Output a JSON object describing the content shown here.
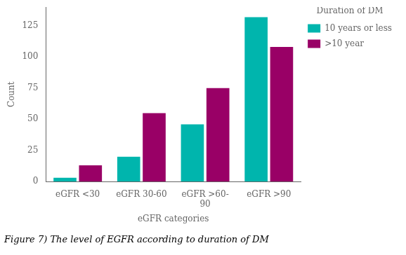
{
  "chart_data": {
    "type": "bar",
    "categories": [
      "eGFR <30",
      "eGFR 30-60",
      "eGFR >60-\n90",
      "eGFR >90"
    ],
    "series": [
      {
        "name": "10 years or less",
        "color": "#00B5AD",
        "values": [
          3,
          20,
          46,
          132
        ]
      },
      {
        "name": ">10 year",
        "color": "#990066",
        "values": [
          13,
          55,
          75,
          108
        ]
      }
    ],
    "legend_title": "Duration of DM",
    "legend": "right",
    "xlabel": "eGFR categories",
    "ylabel": "Count",
    "caption": "Figure 7) The level of EGFR according to duration of DM",
    "ylim": [
      0,
      140
    ],
    "yticks": [
      0,
      25,
      50,
      75,
      100,
      125
    ],
    "grid": false
  }
}
